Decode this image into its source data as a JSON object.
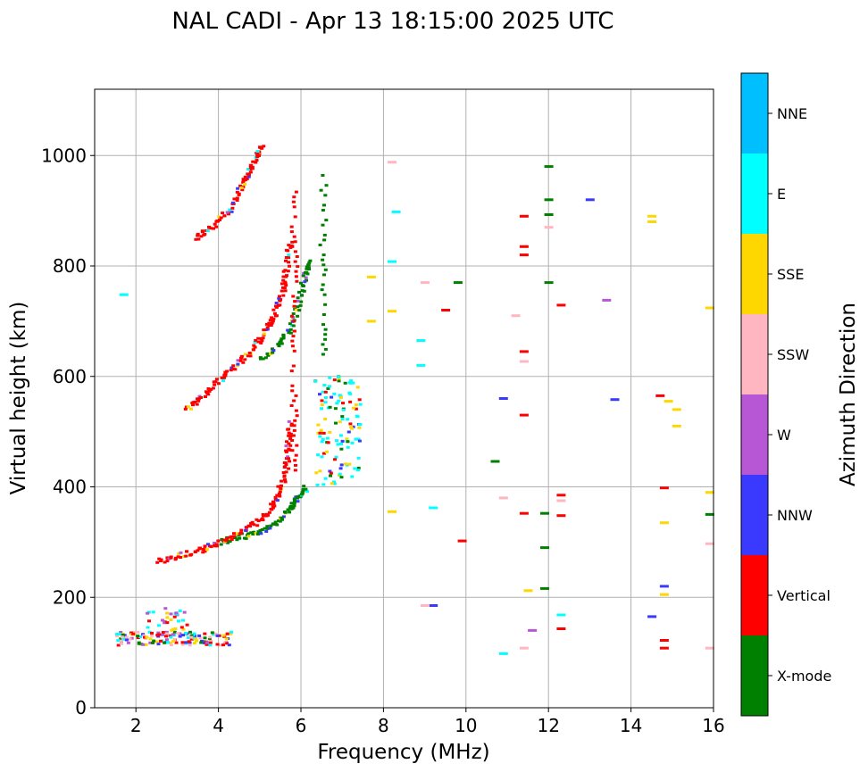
{
  "chart_data": {
    "type": "scatter",
    "title": "NAL CADI - Apr 13 18:15:00 2025 UTC",
    "xlabel": "Frequency (MHz)",
    "ylabel": "Virtual height (km)",
    "xlim": [
      1,
      16
    ],
    "ylim": [
      0,
      1120
    ],
    "x_ticks": [
      2,
      4,
      6,
      8,
      10,
      12,
      14,
      16
    ],
    "y_ticks": [
      0,
      200,
      400,
      600,
      800,
      1000
    ],
    "grid": true,
    "colorbar": {
      "label": "Azimuth Direction",
      "categories": [
        {
          "name": "X-mode",
          "color": "#008000"
        },
        {
          "name": "Vertical",
          "color": "#ff0000"
        },
        {
          "name": "NNW",
          "color": "#3a3aff"
        },
        {
          "name": "W",
          "color": "#b857d6"
        },
        {
          "name": "SSW",
          "color": "#ffb6c1"
        },
        {
          "name": "SSE",
          "color": "#ffd700"
        },
        {
          "name": "E",
          "color": "#00ffff"
        },
        {
          "name": "NNE",
          "color": "#00bfff"
        }
      ]
    },
    "traces": [
      {
        "name": "E-region echoes",
        "x_range": [
          1.5,
          4.3
        ],
        "y_center": 125,
        "y_spread": 12,
        "count": 140,
        "mix": [
          "Vertical",
          "E",
          "SSE",
          "W",
          "X-mode",
          "SSW",
          "NNW"
        ]
      },
      {
        "name": "E-region scatter",
        "x_range": [
          2.2,
          3.2
        ],
        "y_center": 150,
        "y_spread": 30,
        "count": 35,
        "mix": [
          "E",
          "SSE",
          "Vertical",
          "W"
        ]
      },
      {
        "name": "F trace X-mode",
        "points": [
          [
            4.0,
            300
          ],
          [
            4.5,
            310
          ],
          [
            5.0,
            318
          ],
          [
            5.4,
            335
          ],
          [
            5.7,
            360
          ],
          [
            5.9,
            380
          ],
          [
            6.1,
            400
          ]
        ],
        "mode": "X-mode"
      },
      {
        "name": "F trace O-mode",
        "points": [
          [
            2.5,
            265
          ],
          [
            3.0,
            275
          ],
          [
            3.5,
            285
          ],
          [
            3.9,
            295
          ],
          [
            4.4,
            312
          ],
          [
            4.9,
            335
          ],
          [
            5.2,
            355
          ],
          [
            5.4,
            385
          ],
          [
            5.6,
            430
          ],
          [
            5.65,
            470
          ],
          [
            5.7,
            520
          ]
        ],
        "mode": "Vertical"
      },
      {
        "name": "Second hop X-mode",
        "points": [
          [
            5.0,
            630
          ],
          [
            5.4,
            655
          ],
          [
            5.7,
            685
          ],
          [
            5.9,
            730
          ],
          [
            6.05,
            780
          ],
          [
            6.2,
            810
          ]
        ],
        "mode": "X-mode"
      },
      {
        "name": "Second hop O-mode",
        "points": [
          [
            3.2,
            540
          ],
          [
            3.6,
            565
          ],
          [
            4.0,
            595
          ],
          [
            4.4,
            620
          ],
          [
            4.8,
            650
          ],
          [
            5.1,
            680
          ],
          [
            5.3,
            710
          ],
          [
            5.5,
            750
          ],
          [
            5.6,
            790
          ],
          [
            5.7,
            850
          ]
        ],
        "mode": "Vertical"
      },
      {
        "name": "Third hop",
        "points": [
          [
            3.4,
            850
          ],
          [
            3.8,
            870
          ],
          [
            4.2,
            900
          ],
          [
            4.5,
            940
          ],
          [
            4.7,
            970
          ],
          [
            4.9,
            1000
          ],
          [
            5.0,
            1015
          ]
        ],
        "mode": "Vertical"
      },
      {
        "name": "Vertical column near 5.8 MHz",
        "x": 5.8,
        "y_range": [
          430,
          940
        ],
        "mode": "Vertical"
      },
      {
        "name": "Spread echoes 6.3-7.4 MHz",
        "x_range": [
          6.3,
          7.4
        ],
        "y_range": [
          400,
          600
        ],
        "count": 120,
        "mix": [
          "E",
          "E",
          "E",
          "X-mode",
          "SSE",
          "Vertical",
          "NNW"
        ]
      },
      {
        "name": "X-mode column near 6.5 MHz",
        "x": 6.5,
        "y_range": [
          640,
          970
        ],
        "mode": "X-mode"
      },
      {
        "name": "Sparse high-frequency echoes",
        "points": [
          [
            11.9,
            980,
            "X-mode"
          ],
          [
            11.9,
            920,
            "X-mode"
          ],
          [
            11.9,
            893,
            "X-mode"
          ],
          [
            11.3,
            890,
            "Vertical"
          ],
          [
            11.3,
            835,
            "Vertical"
          ],
          [
            11.3,
            820,
            "Vertical"
          ],
          [
            12.9,
            920,
            "NNW"
          ],
          [
            14.4,
            890,
            "SSE"
          ],
          [
            14.4,
            880,
            "SSE"
          ],
          [
            13.3,
            738,
            "W"
          ],
          [
            15.8,
            724,
            "SSE"
          ],
          [
            12.2,
            729,
            "Vertical"
          ],
          [
            11.9,
            770,
            "X-mode"
          ],
          [
            14.6,
            565,
            "Vertical"
          ],
          [
            14.8,
            555,
            "SSE"
          ],
          [
            15.0,
            540,
            "SSE"
          ],
          [
            15.0,
            510,
            "SSE"
          ],
          [
            13.5,
            558,
            "NNW"
          ],
          [
            10.8,
            560,
            "NNW"
          ],
          [
            11.3,
            530,
            "Vertical"
          ],
          [
            15.8,
            390,
            "SSE"
          ],
          [
            15.8,
            350,
            "X-mode"
          ],
          [
            15.8,
            297,
            "SSW"
          ],
          [
            14.7,
            398,
            "Vertical"
          ],
          [
            14.7,
            335,
            "SSE"
          ],
          [
            14.7,
            220,
            "NNW"
          ],
          [
            14.7,
            205,
            "SSE"
          ],
          [
            14.4,
            165,
            "NNW"
          ],
          [
            14.7,
            122,
            "Vertical"
          ],
          [
            14.7,
            108,
            "Vertical"
          ],
          [
            15.8,
            108,
            "SSW"
          ],
          [
            12.2,
            385,
            "Vertical"
          ],
          [
            12.2,
            348,
            "Vertical"
          ],
          [
            11.8,
            352,
            "X-mode"
          ],
          [
            11.3,
            352,
            "Vertical"
          ],
          [
            11.8,
            290,
            "X-mode"
          ],
          [
            11.8,
            216,
            "X-mode"
          ],
          [
            11.4,
            212,
            "SSE"
          ],
          [
            12.2,
            168,
            "E"
          ],
          [
            12.2,
            143,
            "Vertical"
          ],
          [
            11.5,
            140,
            "W"
          ],
          [
            11.3,
            108,
            "SSW"
          ],
          [
            10.8,
            98,
            "E"
          ],
          [
            9.1,
            185,
            "NNW"
          ],
          [
            8.9,
            185,
            "SSW"
          ],
          [
            9.1,
            362,
            "E"
          ],
          [
            9.8,
            302,
            "Vertical"
          ],
          [
            10.6,
            446,
            "X-mode"
          ],
          [
            10.8,
            380,
            "SSW"
          ],
          [
            8.1,
            355,
            "SSE"
          ],
          [
            8.2,
            898,
            "E"
          ],
          [
            8.1,
            988,
            "SSW"
          ],
          [
            8.1,
            808,
            "E"
          ],
          [
            8.9,
            770,
            "SSW"
          ],
          [
            9.4,
            720,
            "Vertical"
          ],
          [
            9.7,
            770,
            "X-mode"
          ],
          [
            8.8,
            665,
            "E"
          ],
          [
            8.8,
            620,
            "E"
          ],
          [
            11.1,
            710,
            "SSW"
          ],
          [
            11.3,
            627,
            "SSW"
          ],
          [
            11.3,
            645,
            "Vertical"
          ],
          [
            11.9,
            870,
            "SSW"
          ],
          [
            12.2,
            375,
            "SSW"
          ],
          [
            8.1,
            718,
            "SSE"
          ],
          [
            1.6,
            748,
            "E"
          ],
          [
            7.6,
            780,
            "SSE"
          ],
          [
            7.6,
            700,
            "SSE"
          ]
        ]
      }
    ]
  }
}
